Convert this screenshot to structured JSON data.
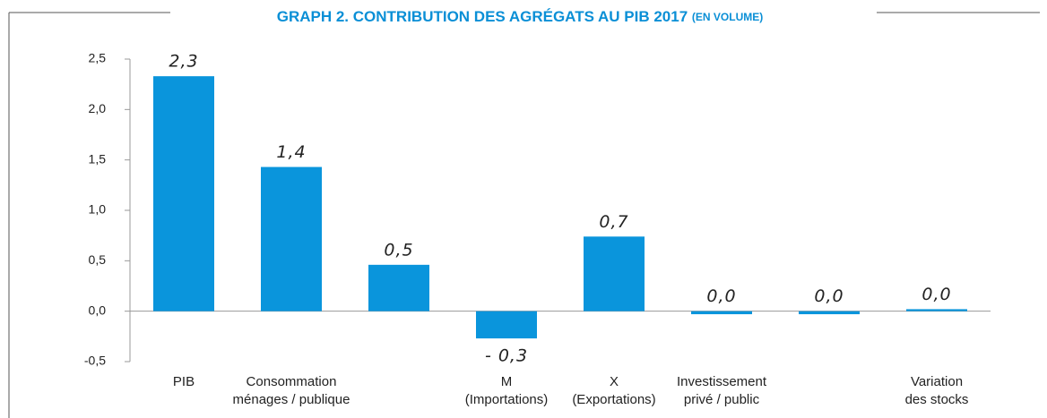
{
  "chart_data": {
    "type": "bar",
    "title": "GRAPH 2. CONTRIBUTION DES AGRÉGATS AU PIB 2017",
    "subtitle": "(EN VOLUME)",
    "categories": [
      [
        "PIB"
      ],
      [
        "Consommation",
        "ménages / publique"
      ],
      [],
      [
        "M",
        "(Importations)"
      ],
      [
        "X",
        "(Exportations)"
      ],
      [
        "Investissement",
        "privé / public"
      ],
      [],
      [
        "Variation",
        "des stocks"
      ]
    ],
    "values": [
      2.33,
      1.43,
      0.46,
      -0.27,
      0.74,
      -0.03,
      -0.03,
      0.02
    ],
    "value_labels": [
      "2,3",
      "1,4",
      "0,5",
      "- 0,3",
      "0,7",
      "0,0",
      "0,0",
      "0,0"
    ],
    "color": "#0a95dc",
    "ylim": [
      -0.5,
      2.5
    ],
    "yticks": [
      {
        "value": -0.5,
        "label": "-0,5"
      },
      {
        "value": 0,
        "label": "0,0"
      },
      {
        "value": 0.5,
        "label": "0,5"
      },
      {
        "value": 1,
        "label": "1,0"
      },
      {
        "value": 1.5,
        "label": "1,5"
      },
      {
        "value": 2,
        "label": "2,0"
      },
      {
        "value": 2.5,
        "label": "2,5"
      }
    ],
    "grid": false
  }
}
